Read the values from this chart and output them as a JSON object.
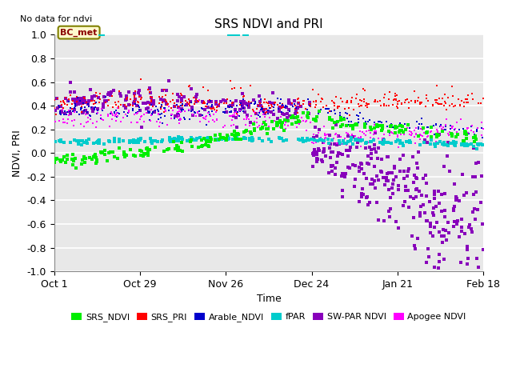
{
  "title": "SRS NDVI and PRI",
  "no_data_text": "No data for ndvi",
  "xlabel": "Time",
  "ylabel": "NDVI, PRI",
  "ylim": [
    -1.0,
    1.0
  ],
  "yticks": [
    -1.0,
    -0.8,
    -0.6,
    -0.4,
    -0.2,
    0.0,
    0.2,
    0.4,
    0.6,
    0.8,
    1.0
  ],
  "xtick_labels": [
    "Oct 1",
    "Oct 29",
    "Nov 26",
    "Dec 24",
    "Jan 21",
    "Feb 18"
  ],
  "xtick_pos": [
    0,
    28,
    56,
    84,
    112,
    140
  ],
  "xlim": [
    0,
    140
  ],
  "fig_bg": "#ffffff",
  "plot_bg": "#e8e8e8",
  "grid_color": "#ffffff",
  "bc_met_label": "BC_met",
  "bc_met_color": "#8b0000",
  "bc_met_bg": "#fffacd",
  "bc_met_edge": "#808000",
  "series": {
    "SRS_NDVI": {
      "color": "#00ee00"
    },
    "SRS_PRI": {
      "color": "#ff0000"
    },
    "Arable_NDVI": {
      "color": "#0000cc"
    },
    "fPAR": {
      "color": "#00cccc"
    },
    "SW-PAR NDVI": {
      "color": "#8800bb"
    },
    "Apogee NDVI": {
      "color": "#ff00ff"
    }
  }
}
